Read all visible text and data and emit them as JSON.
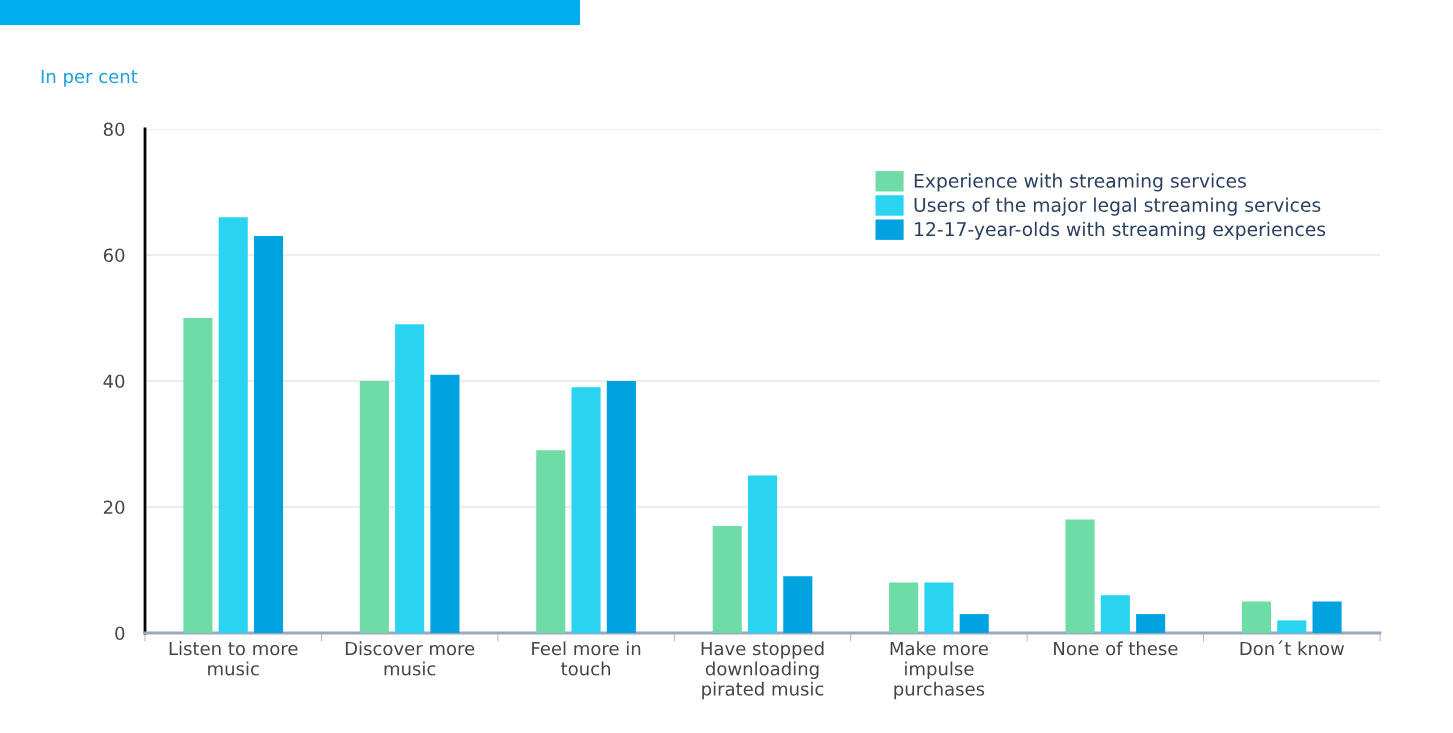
{
  "chart_data": {
    "type": "bar",
    "ylabel": "In per cent",
    "categories": [
      "Listen to more\nmusic",
      "Discover more\nmusic",
      "Feel more in\ntouch",
      "Have stopped\ndownloading\npirated music",
      "Make more\nimpulse\npurchases",
      "None of these",
      "Don´t know"
    ],
    "series": [
      {
        "name": "Experience with streaming services",
        "color": "#6fdba7",
        "values": [
          50,
          40,
          29,
          17,
          8,
          18,
          5
        ]
      },
      {
        "name": "Users of the major legal streaming services",
        "color": "#2ad4f0",
        "values": [
          66,
          49,
          39,
          25,
          8,
          6,
          2
        ]
      },
      {
        "name": "12-17-year-olds with streaming experiences",
        "color": "#00a3e0",
        "values": [
          63,
          41,
          40,
          9,
          3,
          3,
          5
        ]
      }
    ],
    "ylim": [
      0,
      80
    ],
    "yticks": [
      0,
      20,
      40,
      60,
      80
    ],
    "grid": "y",
    "legend": "top right"
  }
}
